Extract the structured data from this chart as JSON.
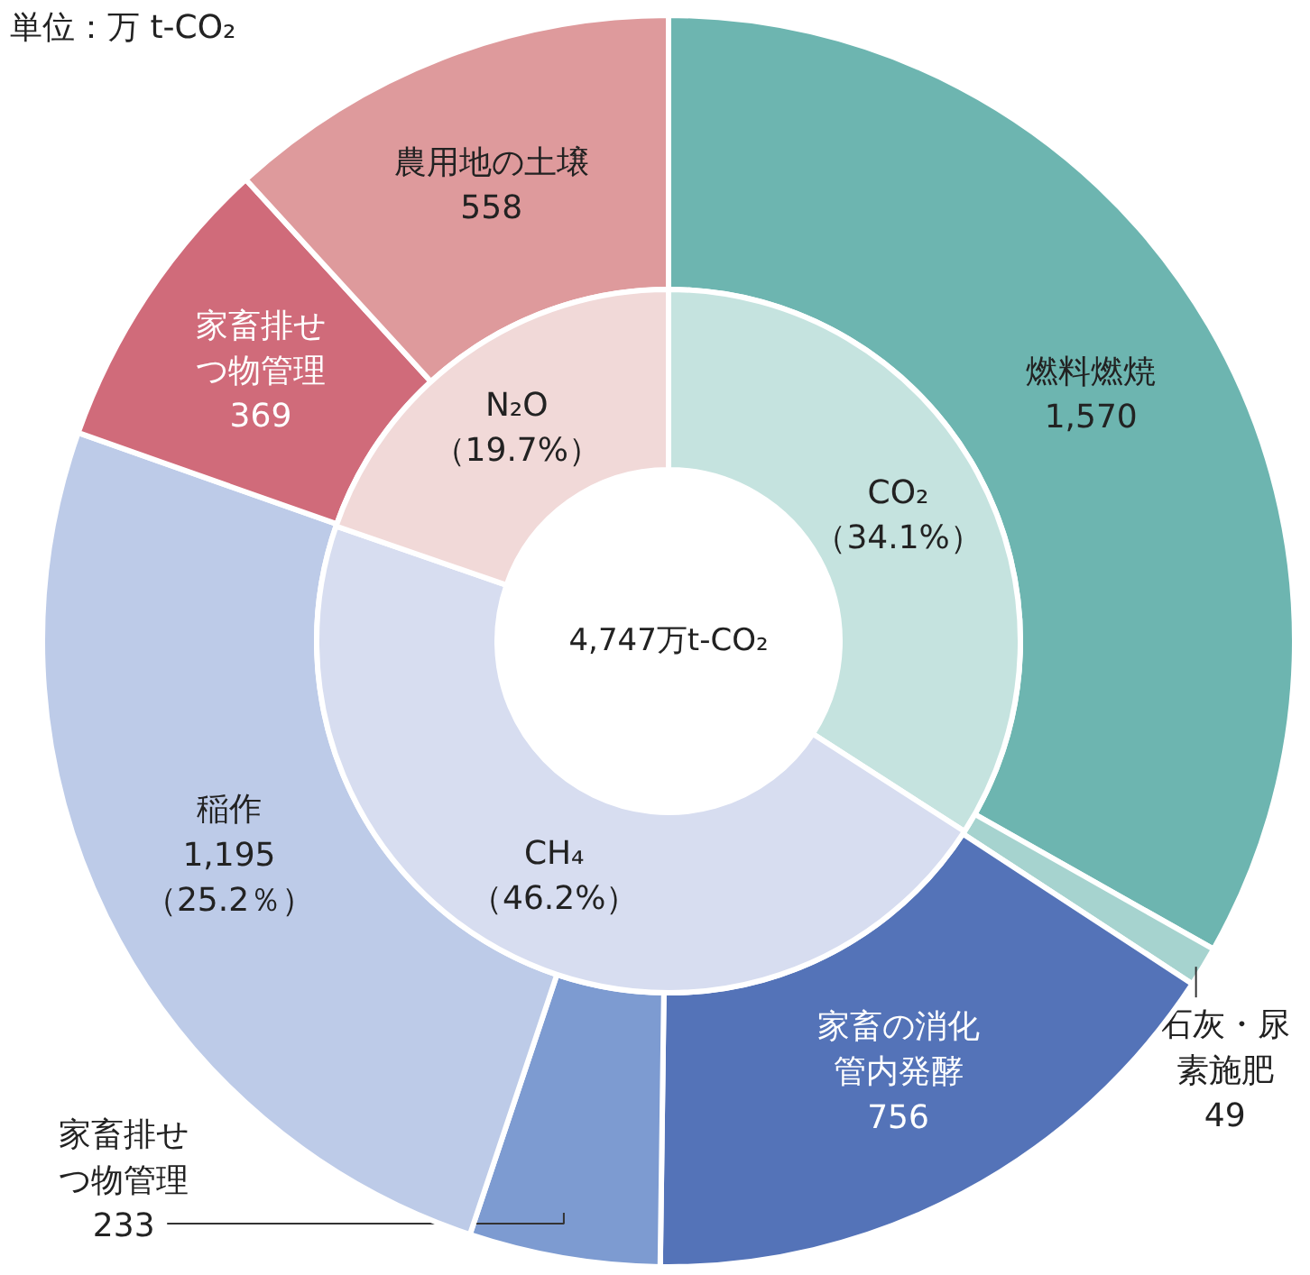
{
  "chart_data": [
    {
      "type": "donut",
      "categories": [
        "燃料燃焼",
        "石灰・尿素施肥",
        "家畜の消化管内発酵",
        "家畜排せつ物管理",
        "稲作",
        "家畜排せつ物管理",
        "農用地の土壌"
      ],
      "values": [
        1570,
        49,
        756,
        233,
        1195,
        369,
        558
      ],
      "value_labels": [
        "1,570",
        "49",
        "756",
        "233",
        "1,195\n（25.2％）",
        "369",
        "558"
      ],
      "colors": [
        "#6db5b0",
        "#a6d3cf",
        "#5473b8",
        "#7d9bd1",
        "#bdcbe8",
        "#d06b7a",
        "#de9a9c"
      ],
      "annotations": [
        "単位：万 t-CO₂"
      ]
    },
    {
      "type": "donut",
      "title": "4,747万t-CO₂",
      "categories": [
        "CO₂",
        "CH₄",
        "N₂O"
      ],
      "values": [
        34.1,
        46.2,
        19.7
      ],
      "value_labels": [
        "（34.1%）",
        "（46.2%）",
        "（19.7%）"
      ],
      "colors": [
        "#c5e3df",
        "#d7ddf0",
        "#f1d9d8"
      ]
    }
  ]
}
